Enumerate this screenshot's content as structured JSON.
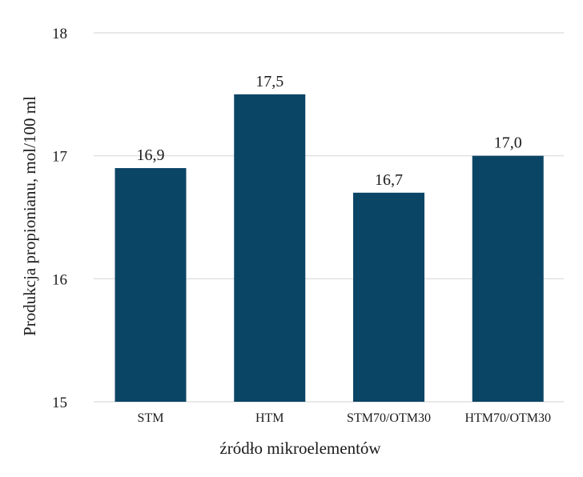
{
  "chart_data": {
    "type": "bar",
    "title": "",
    "xlabel": "źródło mikroelementów",
    "ylabel": "Produkcja propionianu, mol/100 ml",
    "categories": [
      "STM",
      "HTM",
      "STM70/OTM30",
      "HTM70/OTM30"
    ],
    "values": [
      16.9,
      17.5,
      16.7,
      17.0
    ],
    "value_labels": [
      "16,9",
      "17,5",
      "16,7",
      "17,0"
    ],
    "ylim": [
      15,
      18
    ],
    "yticks": [
      15,
      16,
      17,
      18
    ],
    "ytick_labels": [
      "15",
      "16",
      "17",
      "18"
    ],
    "grid": true,
    "legend": "none",
    "bar_color": "#0b4566",
    "grid_color": "#d9d9d9"
  }
}
